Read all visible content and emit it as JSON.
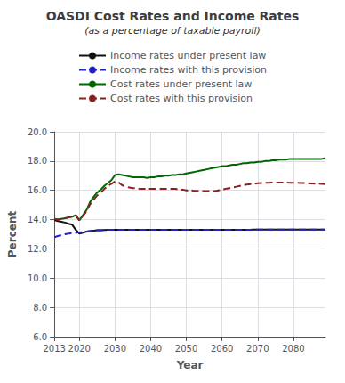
{
  "chart_data": {
    "type": "line",
    "title": "OASDI Cost Rates and Income Rates",
    "subtitle": "(as a percentage of taxable payroll)",
    "xlabel": "Year",
    "ylabel": "Percent",
    "x": [
      2013,
      2014,
      2015,
      2016,
      2017,
      2018,
      2019,
      2020,
      2021,
      2022,
      2023,
      2024,
      2025,
      2026,
      2027,
      2028,
      2029,
      2030,
      2031,
      2032,
      2033,
      2034,
      2035,
      2036,
      2037,
      2038,
      2039,
      2040,
      2041,
      2042,
      2043,
      2044,
      2045,
      2046,
      2047,
      2048,
      2049,
      2050,
      2051,
      2052,
      2053,
      2054,
      2055,
      2056,
      2057,
      2058,
      2059,
      2060,
      2061,
      2062,
      2063,
      2064,
      2065,
      2066,
      2067,
      2068,
      2069,
      2070,
      2071,
      2072,
      2073,
      2074,
      2075,
      2076,
      2077,
      2078,
      2079,
      2080,
      2081,
      2082,
      2083,
      2084,
      2085,
      2086,
      2087,
      2088,
      2089
    ],
    "xlim": [
      2013,
      2089
    ],
    "xticks": [
      2013,
      2020,
      2030,
      2040,
      2050,
      2060,
      2070,
      2080
    ],
    "ylim": [
      6.0,
      20.0
    ],
    "yticks": [
      {
        "value": 6.0,
        "label": "6.0"
      },
      {
        "value": 8.0,
        "label": "8.0"
      },
      {
        "value": 10.0,
        "label": "10.0"
      },
      {
        "value": 12.0,
        "label": "12.0"
      },
      {
        "value": 14.0,
        "label": "14.0"
      },
      {
        "value": 16.0,
        "label": "16.0"
      },
      {
        "value": 18.0,
        "label": "18.0"
      },
      {
        "value": 20.0,
        "label": "20.0"
      }
    ],
    "grid": true,
    "legend": "top",
    "series": [
      {
        "name": "Income rates under present law",
        "color": "#111111",
        "line_style": "solid",
        "values": [
          13.97,
          13.9,
          13.85,
          13.8,
          13.72,
          13.65,
          13.3,
          13.05,
          13.1,
          13.18,
          13.22,
          13.25,
          13.27,
          13.28,
          13.29,
          13.3,
          13.3,
          13.31,
          13.31,
          13.31,
          13.31,
          13.31,
          13.31,
          13.31,
          13.31,
          13.31,
          13.31,
          13.31,
          13.31,
          13.31,
          13.31,
          13.31,
          13.31,
          13.31,
          13.31,
          13.31,
          13.31,
          13.31,
          13.31,
          13.31,
          13.31,
          13.31,
          13.31,
          13.31,
          13.31,
          13.31,
          13.31,
          13.31,
          13.31,
          13.31,
          13.31,
          13.31,
          13.31,
          13.31,
          13.31,
          13.31,
          13.32,
          13.32,
          13.32,
          13.32,
          13.32,
          13.32,
          13.32,
          13.32,
          13.32,
          13.32,
          13.32,
          13.32,
          13.32,
          13.32,
          13.32,
          13.32,
          13.32,
          13.32,
          13.32,
          13.32,
          13.32
        ]
      },
      {
        "name": "Income rates with this provision",
        "color": "#2222cc",
        "line_style": "dashed",
        "values": [
          12.8,
          12.88,
          12.95,
          13.0,
          13.05,
          13.08,
          13.1,
          13.12,
          13.15,
          13.18,
          13.22,
          13.25,
          13.27,
          13.28,
          13.29,
          13.3,
          13.3,
          13.31,
          13.31,
          13.31,
          13.31,
          13.31,
          13.31,
          13.31,
          13.31,
          13.31,
          13.31,
          13.31,
          13.31,
          13.31,
          13.31,
          13.31,
          13.31,
          13.31,
          13.31,
          13.31,
          13.31,
          13.31,
          13.31,
          13.31,
          13.31,
          13.31,
          13.31,
          13.31,
          13.31,
          13.31,
          13.31,
          13.31,
          13.31,
          13.31,
          13.31,
          13.31,
          13.31,
          13.31,
          13.31,
          13.31,
          13.32,
          13.32,
          13.32,
          13.32,
          13.32,
          13.32,
          13.32,
          13.32,
          13.32,
          13.32,
          13.32,
          13.32,
          13.32,
          13.32,
          13.32,
          13.32,
          13.32,
          13.32,
          13.32,
          13.32,
          13.32
        ]
      },
      {
        "name": "Cost rates under present law",
        "color": "#006600",
        "line_style": "solid",
        "values": [
          14.05,
          14.0,
          14.05,
          14.1,
          14.15,
          14.2,
          14.3,
          13.95,
          14.3,
          14.65,
          15.2,
          15.55,
          15.85,
          16.05,
          16.3,
          16.5,
          16.7,
          17.05,
          17.1,
          17.05,
          17.0,
          16.95,
          16.9,
          16.9,
          16.9,
          16.9,
          16.85,
          16.9,
          16.9,
          16.95,
          16.95,
          17.0,
          17.0,
          17.05,
          17.05,
          17.1,
          17.1,
          17.15,
          17.2,
          17.25,
          17.3,
          17.35,
          17.4,
          17.45,
          17.5,
          17.55,
          17.6,
          17.65,
          17.65,
          17.7,
          17.75,
          17.75,
          17.8,
          17.85,
          17.85,
          17.9,
          17.9,
          17.95,
          17.95,
          18.0,
          18.0,
          18.05,
          18.05,
          18.1,
          18.1,
          18.1,
          18.15,
          18.15,
          18.15,
          18.15,
          18.15,
          18.15,
          18.15,
          18.15,
          18.15,
          18.15,
          18.2
        ]
      },
      {
        "name": "Cost rates with this provision",
        "color": "#882222",
        "line_style": "dashed",
        "values": [
          14.05,
          14.0,
          14.05,
          14.1,
          14.15,
          14.2,
          14.3,
          13.95,
          14.25,
          14.55,
          15.05,
          15.35,
          15.65,
          15.85,
          16.1,
          16.3,
          16.45,
          16.6,
          16.55,
          16.35,
          16.25,
          16.2,
          16.15,
          16.15,
          16.1,
          16.1,
          16.1,
          16.1,
          16.1,
          16.1,
          16.1,
          16.1,
          16.1,
          16.1,
          16.1,
          16.05,
          16.05,
          16.0,
          16.0,
          15.98,
          15.97,
          15.96,
          15.95,
          15.95,
          15.95,
          15.95,
          16.0,
          16.05,
          16.1,
          16.15,
          16.2,
          16.25,
          16.3,
          16.35,
          16.4,
          16.43,
          16.45,
          16.48,
          16.5,
          16.52,
          16.52,
          16.53,
          16.53,
          16.53,
          16.53,
          16.53,
          16.52,
          16.52,
          16.52,
          16.5,
          16.5,
          16.48,
          16.47,
          16.46,
          16.45,
          16.44,
          16.42
        ]
      }
    ]
  }
}
